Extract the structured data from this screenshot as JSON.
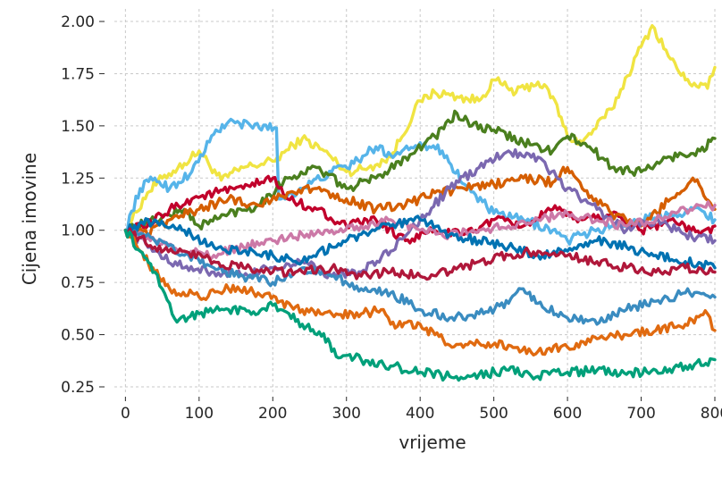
{
  "chart_data": {
    "type": "line",
    "title": "",
    "xlabel": "vrijeme",
    "ylabel": "Cijena imovine",
    "xlim": [
      -15,
      800
    ],
    "ylim": [
      0.22,
      2.06
    ],
    "xticks": [
      0,
      100,
      200,
      300,
      400,
      500,
      600,
      700,
      800
    ],
    "xtick_labels": [
      "0",
      "100",
      "200",
      "300",
      "400",
      "500",
      "600",
      "700",
      "800"
    ],
    "yticks": [
      0.25,
      0.5,
      0.75,
      1.0,
      1.25,
      1.5,
      1.75,
      2.0
    ],
    "ytick_labels": [
      "0.25",
      "0.50",
      "0.75",
      "1.00",
      "1.25",
      "1.50",
      "1.75",
      "2.00"
    ],
    "grid": true,
    "legend": "none",
    "series": [
      {
        "color": "#F0E442",
        "x": [
          0,
          30,
          50,
          80,
          100,
          130,
          160,
          200,
          240,
          270,
          300,
          330,
          360,
          400,
          420,
          450,
          480,
          500,
          530,
          560,
          580,
          600,
          620,
          660,
          700,
          715,
          740,
          760,
          790,
          800
        ],
        "values": [
          1.0,
          1.18,
          1.25,
          1.32,
          1.38,
          1.24,
          1.3,
          1.33,
          1.44,
          1.38,
          1.28,
          1.3,
          1.35,
          1.62,
          1.66,
          1.64,
          1.62,
          1.72,
          1.66,
          1.71,
          1.64,
          1.45,
          1.42,
          1.58,
          1.88,
          1.98,
          1.82,
          1.72,
          1.68,
          1.78
        ]
      },
      {
        "color": "#56B4E9",
        "x": [
          0,
          20,
          40,
          60,
          90,
          120,
          140,
          170,
          205,
          208,
          240,
          280,
          310,
          340,
          360,
          400,
          430,
          460,
          500,
          540,
          580,
          600,
          620,
          660,
          700,
          740,
          780,
          800
        ],
        "values": [
          1.0,
          1.2,
          1.25,
          1.2,
          1.28,
          1.46,
          1.52,
          1.5,
          1.49,
          1.15,
          1.2,
          1.28,
          1.32,
          1.4,
          1.36,
          1.42,
          1.38,
          1.22,
          1.08,
          1.05,
          1.0,
          0.95,
          0.98,
          1.02,
          1.05,
          1.08,
          1.1,
          1.05
        ]
      },
      {
        "color": "#4A7F1E",
        "x": [
          0,
          40,
          80,
          100,
          140,
          180,
          220,
          260,
          300,
          340,
          380,
          420,
          450,
          470,
          500,
          540,
          580,
          600,
          630,
          660,
          700,
          740,
          780,
          800
        ],
        "values": [
          1.0,
          1.05,
          1.1,
          1.02,
          1.08,
          1.12,
          1.25,
          1.3,
          1.2,
          1.25,
          1.35,
          1.45,
          1.56,
          1.5,
          1.48,
          1.42,
          1.38,
          1.45,
          1.4,
          1.3,
          1.28,
          1.35,
          1.38,
          1.44
        ]
      },
      {
        "color": "#C1002B",
        "x": [
          0,
          30,
          60,
          90,
          120,
          160,
          200,
          220,
          260,
          300,
          340,
          380,
          420,
          460,
          500,
          540,
          580,
          620,
          660,
          700,
          740,
          780,
          800
        ],
        "values": [
          1.0,
          1.02,
          1.1,
          1.15,
          1.18,
          1.2,
          1.25,
          1.15,
          1.1,
          1.02,
          1.05,
          0.95,
          1.0,
          0.98,
          1.05,
          1.02,
          1.1,
          1.05,
          1.08,
          1.0,
          1.05,
          0.98,
          1.02
        ]
      },
      {
        "color": "#D55E00",
        "x": [
          0,
          30,
          60,
          100,
          140,
          180,
          220,
          260,
          300,
          340,
          380,
          420,
          460,
          500,
          540,
          580,
          600,
          620,
          660,
          700,
          740,
          770,
          800
        ],
        "values": [
          1.0,
          0.98,
          1.05,
          1.1,
          1.15,
          1.12,
          1.18,
          1.2,
          1.15,
          1.1,
          1.12,
          1.18,
          1.2,
          1.22,
          1.25,
          1.23,
          1.3,
          1.2,
          1.08,
          1.02,
          1.15,
          1.25,
          1.1
        ]
      },
      {
        "color": "#7B68B0",
        "x": [
          0,
          40,
          80,
          120,
          160,
          200,
          240,
          280,
          320,
          360,
          400,
          440,
          480,
          520,
          560,
          600,
          640,
          680,
          720,
          760,
          800
        ],
        "values": [
          1.0,
          0.9,
          0.82,
          0.8,
          0.78,
          0.82,
          0.85,
          0.78,
          0.8,
          0.9,
          1.05,
          1.2,
          1.3,
          1.38,
          1.35,
          1.2,
          1.1,
          1.0,
          1.05,
          0.98,
          0.95
        ]
      },
      {
        "color": "#CC79A7",
        "x": [
          0,
          40,
          80,
          120,
          160,
          200,
          240,
          280,
          320,
          360,
          400,
          440,
          480,
          520,
          560,
          600,
          640,
          680,
          720,
          760,
          800
        ],
        "values": [
          1.0,
          0.95,
          0.9,
          0.88,
          0.92,
          0.95,
          0.98,
          1.0,
          1.02,
          1.05,
          1.0,
          0.98,
          1.0,
          1.02,
          1.05,
          1.08,
          1.05,
          1.02,
          1.05,
          1.1,
          1.12
        ]
      },
      {
        "color": "#0072B2",
        "x": [
          0,
          40,
          80,
          120,
          160,
          200,
          240,
          280,
          320,
          360,
          400,
          440,
          480,
          520,
          560,
          600,
          640,
          680,
          720,
          760,
          800
        ],
        "values": [
          1.0,
          1.05,
          1.0,
          0.92,
          0.9,
          0.88,
          0.85,
          0.92,
          0.98,
          1.02,
          1.05,
          0.98,
          0.95,
          0.92,
          0.88,
          0.9,
          0.95,
          0.92,
          0.88,
          0.85,
          0.82
        ]
      },
      {
        "color": "#3A8CC0",
        "x": [
          0,
          40,
          80,
          120,
          160,
          200,
          240,
          280,
          320,
          360,
          400,
          440,
          480,
          520,
          540,
          560,
          600,
          640,
          680,
          720,
          760,
          800
        ],
        "values": [
          1.0,
          0.95,
          0.88,
          0.82,
          0.78,
          0.75,
          0.82,
          0.78,
          0.72,
          0.7,
          0.62,
          0.58,
          0.6,
          0.65,
          0.72,
          0.65,
          0.58,
          0.55,
          0.62,
          0.66,
          0.7,
          0.68
        ]
      },
      {
        "color": "#B0173A",
        "x": [
          0,
          40,
          80,
          120,
          160,
          200,
          240,
          280,
          320,
          360,
          400,
          440,
          480,
          520,
          560,
          600,
          640,
          680,
          720,
          760,
          800
        ],
        "values": [
          1.0,
          0.92,
          0.9,
          0.85,
          0.82,
          0.8,
          0.8,
          0.82,
          0.78,
          0.8,
          0.78,
          0.8,
          0.85,
          0.88,
          0.9,
          0.88,
          0.85,
          0.82,
          0.8,
          0.82,
          0.8
        ]
      },
      {
        "color": "#E06A10",
        "x": [
          0,
          20,
          40,
          60,
          100,
          140,
          180,
          210,
          240,
          280,
          320,
          350,
          360,
          400,
          420,
          440,
          480,
          520,
          560,
          600,
          640,
          680,
          720,
          760,
          790,
          800
        ],
        "values": [
          1.0,
          0.9,
          0.8,
          0.72,
          0.68,
          0.72,
          0.7,
          0.66,
          0.62,
          0.6,
          0.6,
          0.62,
          0.55,
          0.55,
          0.5,
          0.45,
          0.46,
          0.45,
          0.42,
          0.44,
          0.48,
          0.5,
          0.52,
          0.55,
          0.6,
          0.52
        ]
      },
      {
        "color": "#00A07A",
        "x": [
          0,
          20,
          40,
          50,
          60,
          70,
          100,
          140,
          180,
          200,
          210,
          240,
          260,
          275,
          280,
          320,
          360,
          400,
          440,
          480,
          520,
          560,
          600,
          640,
          680,
          720,
          760,
          800
        ],
        "values": [
          1.0,
          0.9,
          0.8,
          0.72,
          0.65,
          0.56,
          0.6,
          0.62,
          0.6,
          0.64,
          0.62,
          0.55,
          0.5,
          0.48,
          0.42,
          0.38,
          0.35,
          0.32,
          0.3,
          0.31,
          0.33,
          0.3,
          0.32,
          0.33,
          0.31,
          0.33,
          0.35,
          0.38
        ]
      }
    ]
  }
}
